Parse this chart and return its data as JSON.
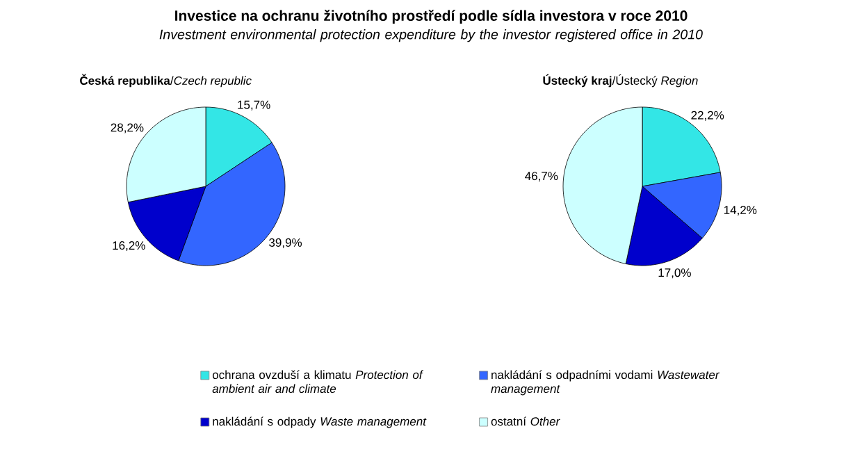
{
  "chart_data": [
    {
      "type": "pie",
      "title": "Investice na ochranu životního prostředí podle sídla investora v roce 2010",
      "subtitle": "Investment environmental protection expenditure by the investor registered office in 2010",
      "annotations": [
        "**Česká republika**/*Czech republic*"
      ],
      "legend": "bottom",
      "categories": [
        "ochrana ovzduší a klimatu *Protection of ambient air and  climate*",
        "nakládání s odpadními vodami *Wastewater management*",
        "nakládání s odpady *Waste management*",
        "ostatní *Other*"
      ],
      "values": [
        15.7,
        39.9,
        16.2,
        28.2
      ],
      "value_labels": [
        "15,7%",
        "39,9%",
        "16,2%",
        "28,2%"
      ],
      "colors": [
        "#33e6e6",
        "#3366ff",
        "#0000cc",
        "#ccffff"
      ]
    },
    {
      "type": "pie",
      "annotations": [
        "**Ústecký kraj**/Ústecký *Region*"
      ],
      "categories": [
        null,
        null,
        null,
        null
      ],
      "values": [
        22.2,
        14.2,
        17.0,
        46.7
      ],
      "value_labels": [
        "22,2%",
        "14,2%",
        "17,0%",
        "46,7%"
      ],
      "colors": [
        "#33e6e6",
        "#3366ff",
        "#0000cc",
        "#ccffff"
      ]
    }
  ]
}
